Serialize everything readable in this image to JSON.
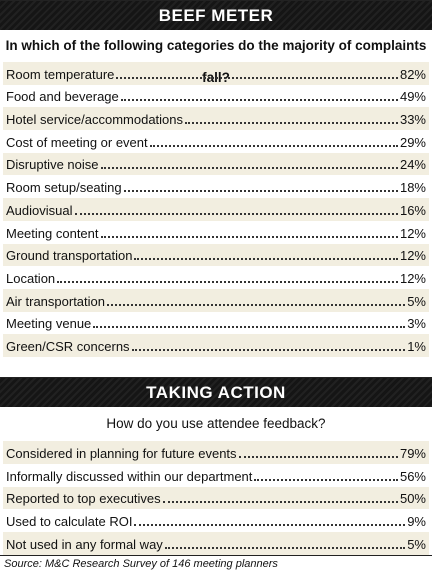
{
  "beef_meter": {
    "title": "BEEF METER",
    "question": "In which of the following categories do the majority of complaints fall?",
    "rows": [
      {
        "label": "Room temperature",
        "value": "82%"
      },
      {
        "label": "Food and beverage",
        "value": "49%"
      },
      {
        "label": "Hotel service/accommodations",
        "value": "33%"
      },
      {
        "label": "Cost of meeting or event",
        "value": "29%"
      },
      {
        "label": "Disruptive noise",
        "value": "24%"
      },
      {
        "label": "Room setup/seating",
        "value": "18%"
      },
      {
        "label": "Audiovisual",
        "value": "16%"
      },
      {
        "label": "Meeting content",
        "value": "12%"
      },
      {
        "label": "Ground transportation",
        "value": "12%"
      },
      {
        "label": "Location",
        "value": "12%"
      },
      {
        "label": "Air transportation",
        "value": "5%"
      },
      {
        "label": "Meeting venue",
        "value": "3%"
      },
      {
        "label": "Green/CSR concerns",
        "value": "1%"
      }
    ]
  },
  "taking_action": {
    "title": "TAKING ACTION",
    "question": "How do you use attendee feedback?",
    "rows": [
      {
        "label": "Considered in planning for future events",
        "value": "79%"
      },
      {
        "label": "Informally discussed within our department",
        "value": "56%"
      },
      {
        "label": "Reported to top executives",
        "value": "50%"
      },
      {
        "label": "Used to calculate ROI",
        "value": "9%"
      },
      {
        "label": "Not used in any formal way",
        "value": "5%"
      }
    ]
  },
  "source": "Source: M&C Research Survey of 146 meeting planners",
  "colors": {
    "banner": "#151515",
    "shaded_row": "#f2eee0"
  }
}
